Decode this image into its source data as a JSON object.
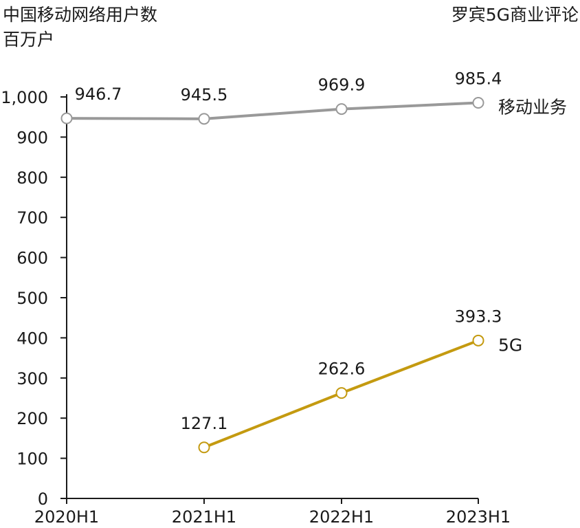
{
  "chart_data": {
    "type": "line",
    "title": "中国移动网络用户数",
    "ylabel": "百万户",
    "source": "罗宾5G商业评论",
    "categories": [
      "2020H1",
      "2021H1",
      "2022H1",
      "2023H1"
    ],
    "y_ticks": [
      "0",
      "100",
      "200",
      "300",
      "400",
      "500",
      "600",
      "700",
      "800",
      "900",
      "1,000"
    ],
    "ylim": [
      0,
      1000
    ],
    "grid": false,
    "series": [
      {
        "name": "移动业务",
        "values": [
          946.7,
          945.5,
          969.9,
          985.4
        ],
        "labels": [
          "946.7",
          "945.5",
          "969.9",
          "985.4"
        ],
        "color": "#999999"
      },
      {
        "name": "5G",
        "values": [
          null,
          127.1,
          262.6,
          393.3
        ],
        "labels": [
          "",
          "127.1",
          "262.6",
          "393.3"
        ],
        "color": "#c49a10"
      }
    ]
  }
}
